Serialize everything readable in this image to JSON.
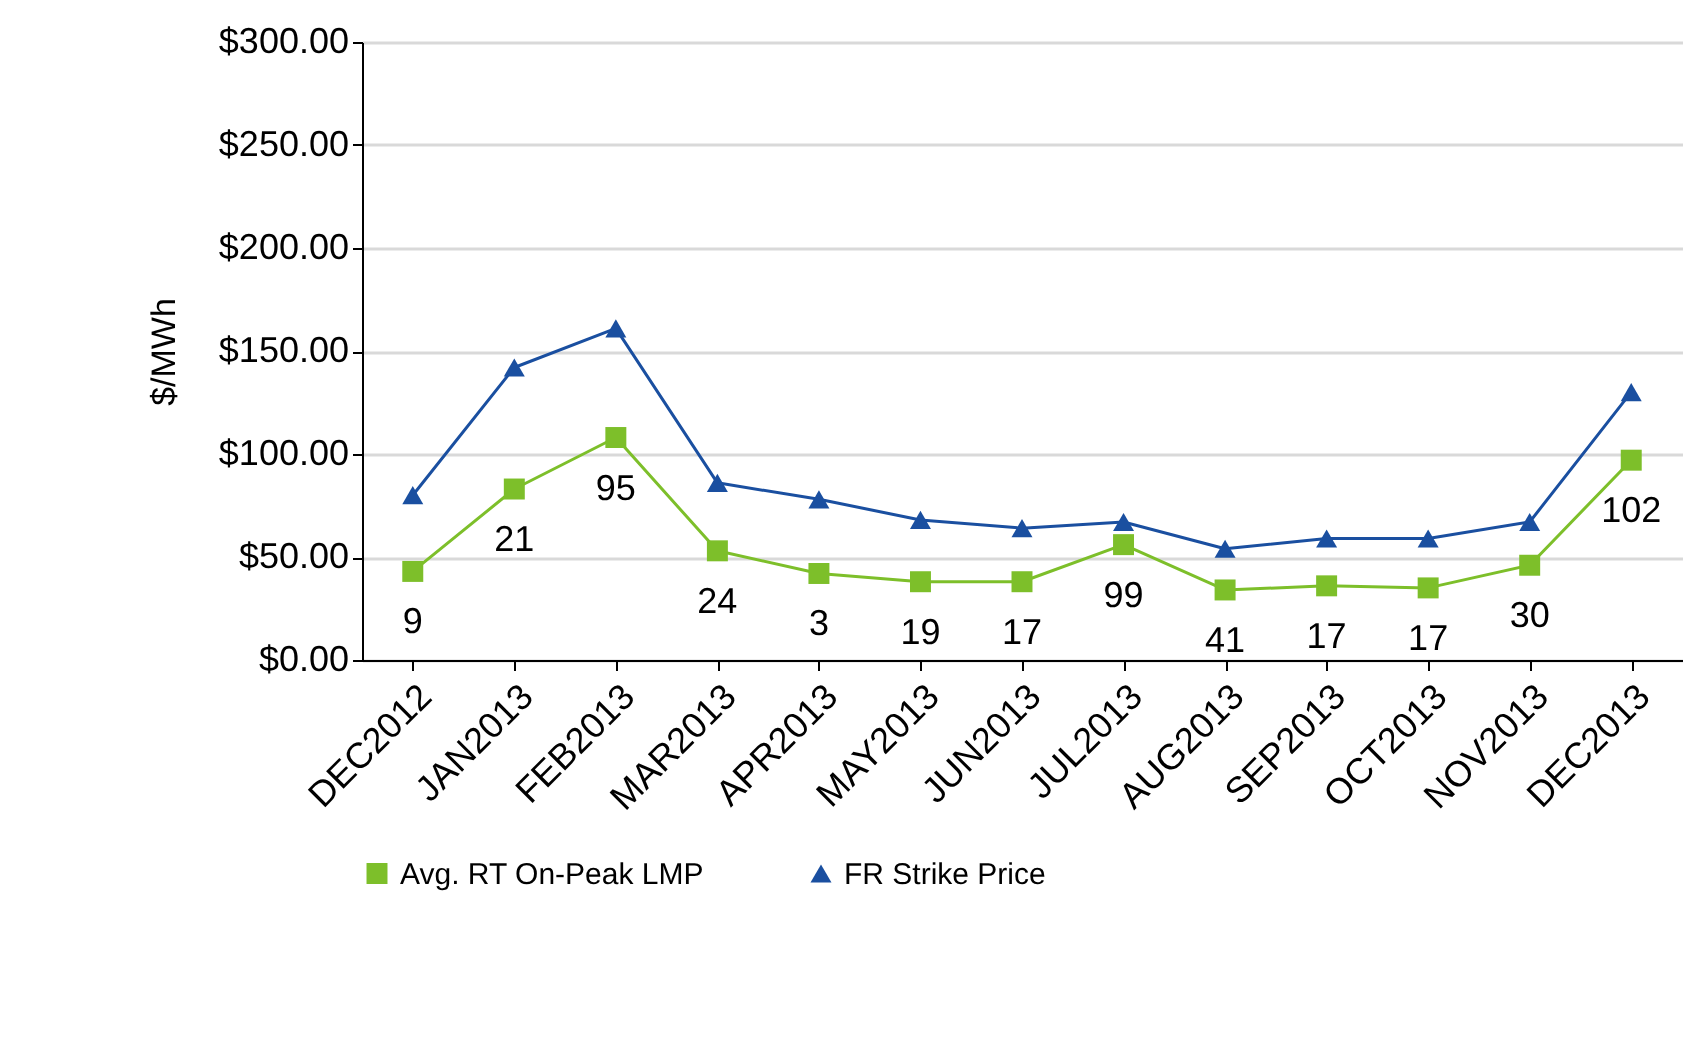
{
  "chart_data": {
    "type": "line",
    "ylabel": "$/MWh",
    "categories": [
      "DEC2012",
      "JAN2013",
      "FEB2013",
      "MAR2013",
      "APR2013",
      "MAY2013",
      "JUN2013",
      "JUL2013",
      "AUG2013",
      "SEP2013",
      "OCT2013",
      "NOV2013",
      "DEC2013"
    ],
    "series": [
      {
        "name": "Avg. RT On-Peak LMP",
        "color": "#7dbf2a",
        "marker": "square",
        "values": [
          43,
          83,
          108,
          53,
          42,
          38,
          38,
          56,
          34,
          36,
          35,
          46,
          97
        ]
      },
      {
        "name": "FR Strike Price",
        "color": "#1a4fa0",
        "marker": "triangle",
        "values": [
          80,
          142,
          161,
          86,
          78,
          68,
          64,
          67,
          54,
          59,
          59,
          67,
          130
        ]
      }
    ],
    "annotations": [
      {
        "text": "9",
        "x": "DEC2012",
        "y": 43
      },
      {
        "text": "21",
        "x": "JAN2013",
        "y": 83
      },
      {
        "text": "95",
        "x": "FEB2013",
        "y": 108
      },
      {
        "text": "24",
        "x": "MAR2013",
        "y": 53
      },
      {
        "text": "3",
        "x": "APR2013",
        "y": 42
      },
      {
        "text": "19",
        "x": "MAY2013",
        "y": 38
      },
      {
        "text": "17",
        "x": "JUN2013",
        "y": 38
      },
      {
        "text": "99",
        "x": "JUL2013",
        "y": 56
      },
      {
        "text": "41",
        "x": "AUG2013",
        "y": 34
      },
      {
        "text": "17",
        "x": "SEP2013",
        "y": 36
      },
      {
        "text": "17",
        "x": "OCT2013",
        "y": 35
      },
      {
        "text": "30",
        "x": "NOV2013",
        "y": 46
      },
      {
        "text": "102",
        "x": "DEC2013",
        "y": 97
      }
    ],
    "ylim": [
      0,
      300
    ],
    "yticks": [
      {
        "value": 0,
        "label": "$0.00"
      },
      {
        "value": 50,
        "label": "$50.00"
      },
      {
        "value": 100,
        "label": "$100.00"
      },
      {
        "value": 150,
        "label": "$150.00"
      },
      {
        "value": 200,
        "label": "$200.00"
      },
      {
        "value": 250,
        "label": "$250.00"
      },
      {
        "value": 300,
        "label": "$300.00"
      }
    ],
    "grid": "y",
    "legend": "bottom",
    "line_style": "solid"
  }
}
